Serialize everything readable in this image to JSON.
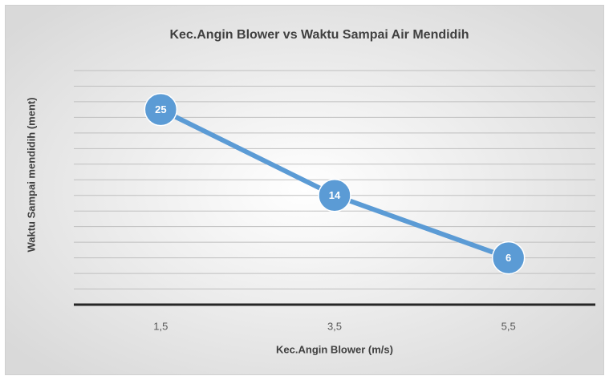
{
  "chart_data": {
    "type": "line",
    "title": "Kec.Angin Blower vs Waktu Sampai Air Mendidih",
    "x_label": "Kec.Angin Blower (m/s)",
    "y_label": "Waktu Sampai mendidih (ment)",
    "categories": [
      "1,5",
      "3,5",
      "5,5"
    ],
    "series": [
      {
        "name": "Waktu Sampai mendidih",
        "color": "#5b9bd5",
        "values": [
          25,
          14,
          6
        ]
      }
    ],
    "ylim": [
      0,
      30
    ],
    "yticks": [
      0,
      2,
      4,
      6,
      8,
      10,
      12,
      14,
      16,
      18,
      20,
      22,
      24,
      26,
      28,
      30
    ],
    "grid": true
  }
}
